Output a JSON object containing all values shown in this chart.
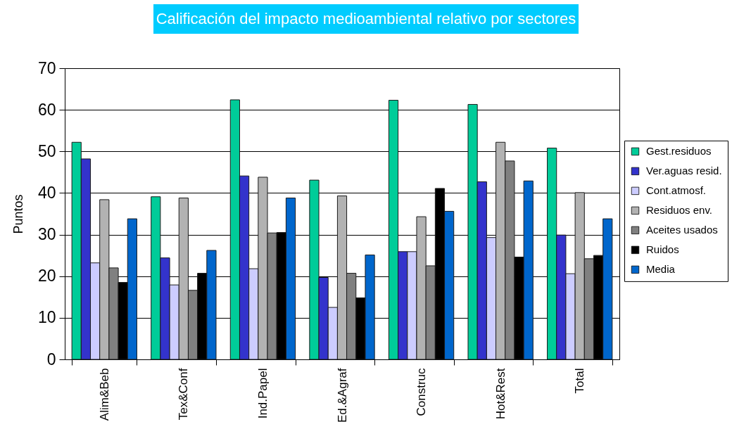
{
  "chart_data": {
    "type": "bar",
    "title": "Calificación del impacto medioambiental relativo por sectores",
    "ylabel": "Puntos",
    "categories": [
      "Alim&Beb",
      "Tex&Conf",
      "Ind.Papel",
      "Ed.&Agraf",
      "Construc",
      "Hot&Rest",
      "Total"
    ],
    "series": [
      {
        "name": "Gest.residuos",
        "color": "#00cc99",
        "values": [
          52.2,
          39.1,
          62.4,
          43.1,
          62.3,
          61.3,
          50.8
        ]
      },
      {
        "name": "Ver.aguas resid.",
        "color": "#3333cc",
        "values": [
          48.2,
          24.4,
          44.1,
          19.7,
          25.9,
          42.7,
          29.9
        ]
      },
      {
        "name": "Cont.atmosf.",
        "color": "#ccccff",
        "values": [
          23.2,
          17.9,
          21.8,
          12.5,
          25.9,
          29.3,
          20.6
        ]
      },
      {
        "name": "Residuos env.",
        "color": "#b2b2b2",
        "values": [
          38.4,
          38.8,
          43.8,
          39.3,
          34.3,
          52.2,
          40.1
        ]
      },
      {
        "name": "Aceites usados",
        "color": "#808080",
        "values": [
          22.0,
          16.6,
          30.4,
          20.7,
          22.5,
          47.7,
          24.2
        ]
      },
      {
        "name": "Ruidos",
        "color": "#000000",
        "values": [
          18.5,
          20.7,
          30.5,
          14.8,
          41.1,
          24.6,
          25.0
        ]
      },
      {
        "name": "Media",
        "color": "#0066cc",
        "values": [
          33.8,
          26.2,
          38.8,
          25.1,
          35.6,
          42.9,
          33.8
        ]
      }
    ],
    "ylim": [
      0,
      70
    ],
    "yticks": [
      0,
      10,
      20,
      30,
      40,
      50,
      60,
      70
    ],
    "grid": "y",
    "legend": "right"
  }
}
